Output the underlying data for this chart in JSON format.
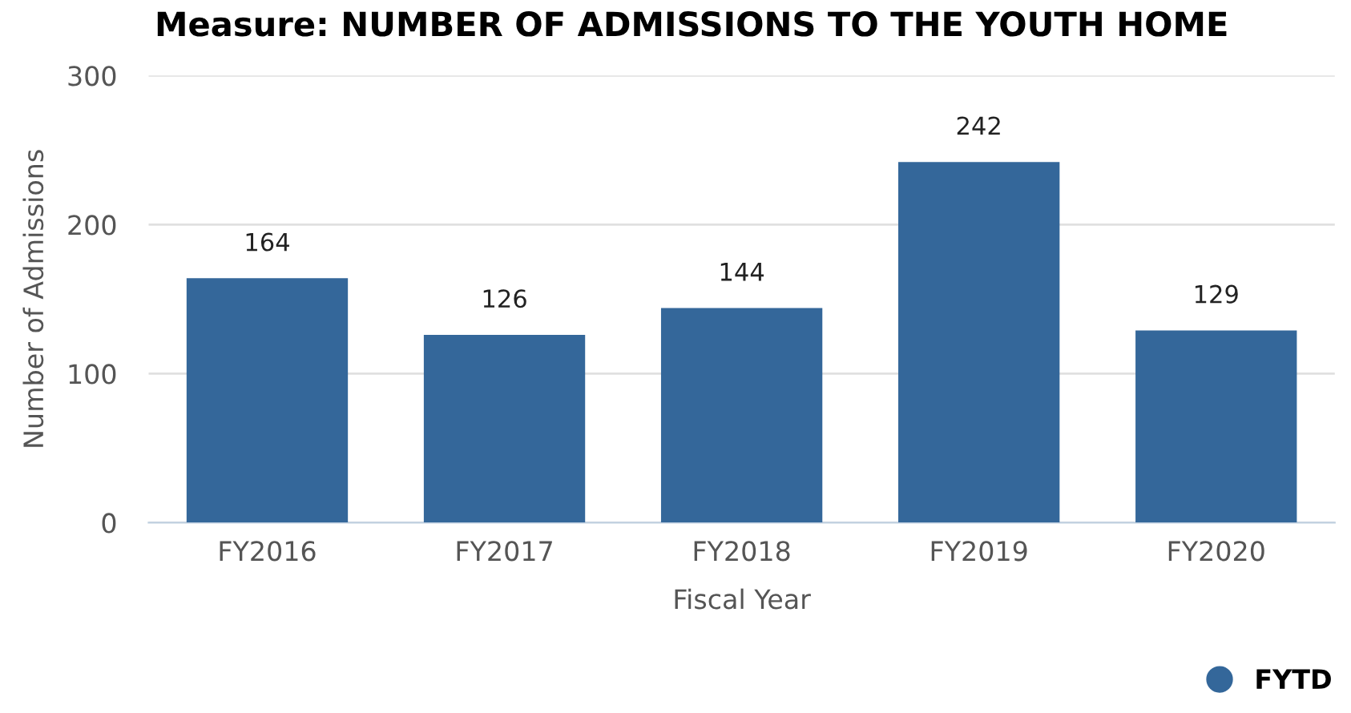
{
  "chart_data": {
    "type": "bar",
    "title": "Measure: NUMBER OF ADMISSIONS TO THE YOUTH HOME",
    "xlabel": "Fiscal Year",
    "ylabel": "Number of Admissions",
    "categories": [
      "FY2016",
      "FY2017",
      "FY2018",
      "FY2019",
      "FY2020"
    ],
    "series": [
      {
        "name": "FYTD",
        "color": "#34679a",
        "values": [
          164,
          126,
          144,
          242,
          129
        ]
      }
    ],
    "ylim": [
      0,
      300
    ],
    "yticks": [
      0,
      100,
      200,
      300
    ],
    "grid": "y",
    "legend": "bottom right",
    "data_labels": true
  }
}
